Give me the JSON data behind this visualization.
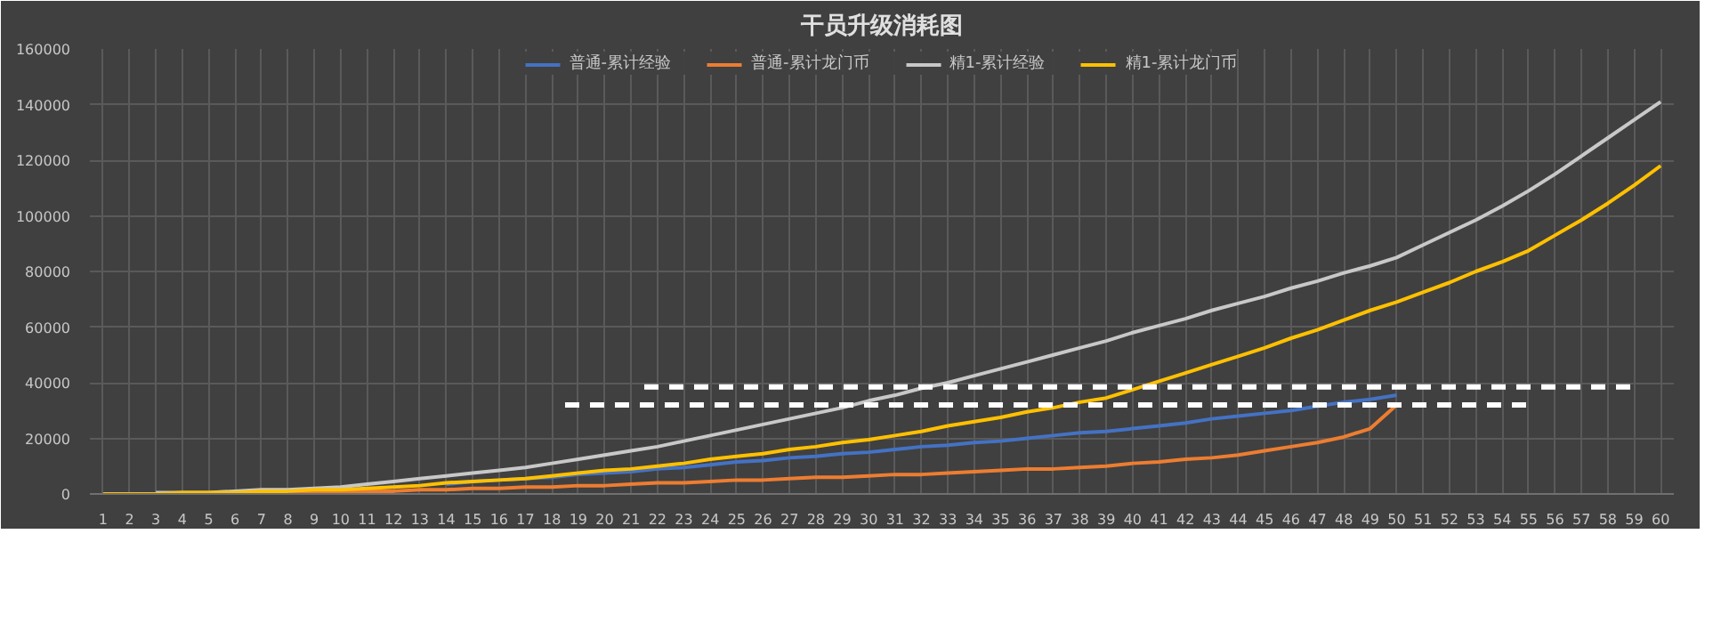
{
  "chart_data": {
    "type": "line",
    "title": "干员升级消耗图",
    "x": [
      1,
      2,
      3,
      4,
      5,
      6,
      7,
      8,
      9,
      10,
      11,
      12,
      13,
      14,
      15,
      16,
      17,
      18,
      19,
      20,
      21,
      22,
      23,
      24,
      25,
      26,
      27,
      28,
      29,
      30,
      31,
      32,
      33,
      34,
      35,
      36,
      37,
      38,
      39,
      40,
      41,
      42,
      43,
      44,
      45,
      46,
      47,
      48,
      49,
      50,
      51,
      52,
      53,
      54,
      55,
      56,
      57,
      58,
      59,
      60
    ],
    "xlim": [
      0.5,
      60.5
    ],
    "xticks": [
      1,
      2,
      3,
      4,
      5,
      6,
      7,
      8,
      9,
      10,
      11,
      12,
      13,
      14,
      15,
      16,
      17,
      18,
      19,
      20,
      21,
      22,
      23,
      24,
      25,
      26,
      27,
      28,
      29,
      30,
      31,
      32,
      33,
      34,
      35,
      36,
      37,
      38,
      39,
      40,
      41,
      42,
      43,
      44,
      45,
      46,
      47,
      48,
      49,
      50,
      51,
      52,
      53,
      54,
      55,
      56,
      57,
      58,
      59,
      60
    ],
    "ylim": [
      0,
      160000
    ],
    "yticks": [
      0,
      20000,
      40000,
      60000,
      80000,
      100000,
      120000,
      140000,
      160000
    ],
    "grid": true,
    "legend": "top",
    "series": [
      {
        "name": "普通-累计经验",
        "color": "#4472c4",
        "values": [
          null,
          null,
          null,
          null,
          null,
          null,
          null,
          null,
          null,
          null,
          null,
          null,
          null,
          3500,
          4500,
          5000,
          5500,
          6000,
          7000,
          7500,
          8000,
          9000,
          9500,
          10500,
          11500,
          12000,
          13000,
          13500,
          14500,
          15000,
          16000,
          17000,
          17500,
          18500,
          19000,
          20000,
          21000,
          22000,
          22500,
          23500,
          24500,
          25500,
          27000,
          28000,
          29000,
          30000,
          31500,
          33000,
          34000,
          35500,
          null,
          null,
          null,
          null,
          null,
          null,
          null,
          null,
          null,
          null
        ]
      },
      {
        "name": "普通-累计龙门币",
        "color": "#ed7d31",
        "values": [
          null,
          null,
          null,
          null,
          null,
          null,
          500,
          500,
          500,
          1000,
          1000,
          1000,
          1500,
          1500,
          2000,
          2000,
          2500,
          2500,
          3000,
          3000,
          3500,
          4000,
          4000,
          4500,
          5000,
          5000,
          5500,
          6000,
          6000,
          6500,
          7000,
          7000,
          7500,
          8000,
          8500,
          9000,
          9000,
          9500,
          10000,
          11000,
          11500,
          12500,
          13000,
          14000,
          15500,
          17000,
          18500,
          20500,
          23500,
          32000,
          null,
          null,
          null,
          null,
          null,
          null,
          null,
          null,
          null,
          null
        ]
      },
      {
        "name": "精1-累计经验",
        "color": "#c8c8c8",
        "values": [
          null,
          null,
          500,
          500,
          500,
          1000,
          1500,
          1500,
          2000,
          2500,
          3500,
          4500,
          5500,
          6500,
          7500,
          8500,
          9500,
          11000,
          12500,
          14000,
          15500,
          17000,
          19000,
          21000,
          23000,
          25000,
          27000,
          29000,
          31000,
          33500,
          35500,
          38000,
          40000,
          42500,
          45000,
          47500,
          50000,
          52500,
          55000,
          58000,
          60500,
          63000,
          66000,
          68500,
          71000,
          74000,
          76500,
          79500,
          82000,
          85000,
          89500,
          94000,
          98500,
          103500,
          109000,
          115000,
          121500,
          128000,
          134500,
          141000
        ]
      },
      {
        "name": "精1-累计龙门币",
        "color": "#ffc000",
        "values": [
          0,
          0,
          0,
          500,
          500,
          500,
          1000,
          1000,
          1500,
          1500,
          2000,
          2500,
          3000,
          4000,
          4500,
          5000,
          5500,
          6500,
          7500,
          8500,
          9000,
          10000,
          11000,
          12500,
          13500,
          14500,
          16000,
          17000,
          18500,
          19500,
          21000,
          22500,
          24500,
          26000,
          27500,
          29500,
          31000,
          33000,
          34500,
          37500,
          40500,
          43500,
          46500,
          49500,
          52500,
          56000,
          59000,
          62500,
          66000,
          69000,
          72500,
          76000,
          80000,
          83500,
          87500,
          93000,
          98500,
          104500,
          111000,
          118000
        ]
      },
      {
        "color": "#ffffff",
        "line_style": "dashed",
        "x": [
          18.5,
          55
        ],
        "values": [
          32000,
          32000
        ]
      },
      {
        "color": "#ffffff",
        "line_style": "dashed",
        "x": [
          21.5,
          59
        ],
        "values": [
          38500,
          38500
        ]
      }
    ]
  }
}
